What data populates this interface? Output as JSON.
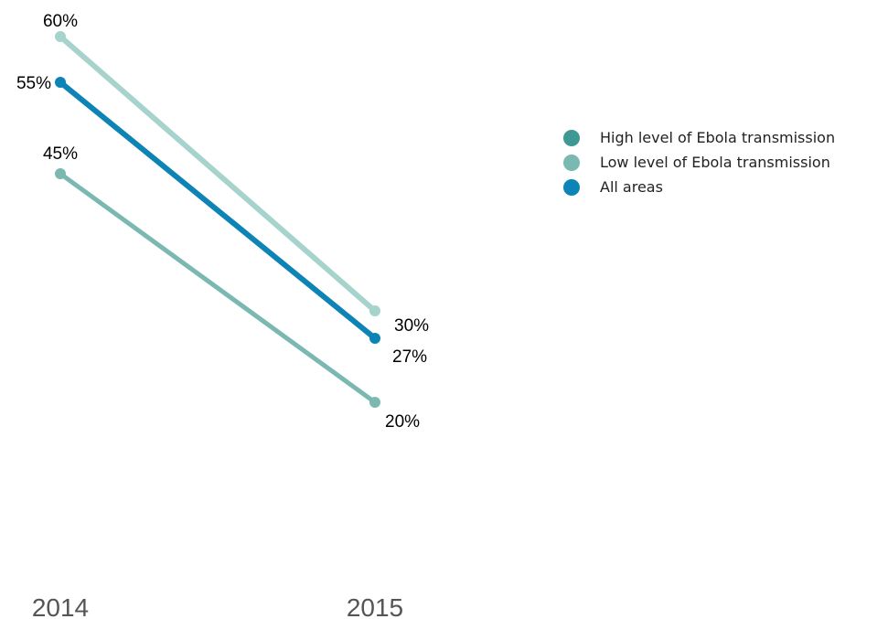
{
  "chart_data": {
    "type": "line",
    "title": "",
    "xlabel": "",
    "ylabel": "",
    "x": [
      "2014",
      "2015"
    ],
    "ylim": [
      0,
      70
    ],
    "grid": false,
    "legend_position": "top-right",
    "series": [
      {
        "name": "Low level of Ebola transmission",
        "values": [
          60,
          30
        ],
        "labels": [
          "60%",
          "30%"
        ],
        "color": "#a7d3cd",
        "legend_color": "#79b9b2"
      },
      {
        "name": "All areas",
        "values": [
          55,
          27
        ],
        "labels": [
          "55%",
          "27%"
        ],
        "color": "#0d84b5",
        "legend_color": "#0d84b5"
      },
      {
        "name": "High level of Ebola transmission",
        "values": [
          45,
          20
        ],
        "labels": [
          "45%",
          "20%"
        ],
        "color": "#7bb8b1",
        "legend_color": "#3e9893"
      }
    ],
    "legend_order": [
      2,
      0,
      1
    ]
  }
}
